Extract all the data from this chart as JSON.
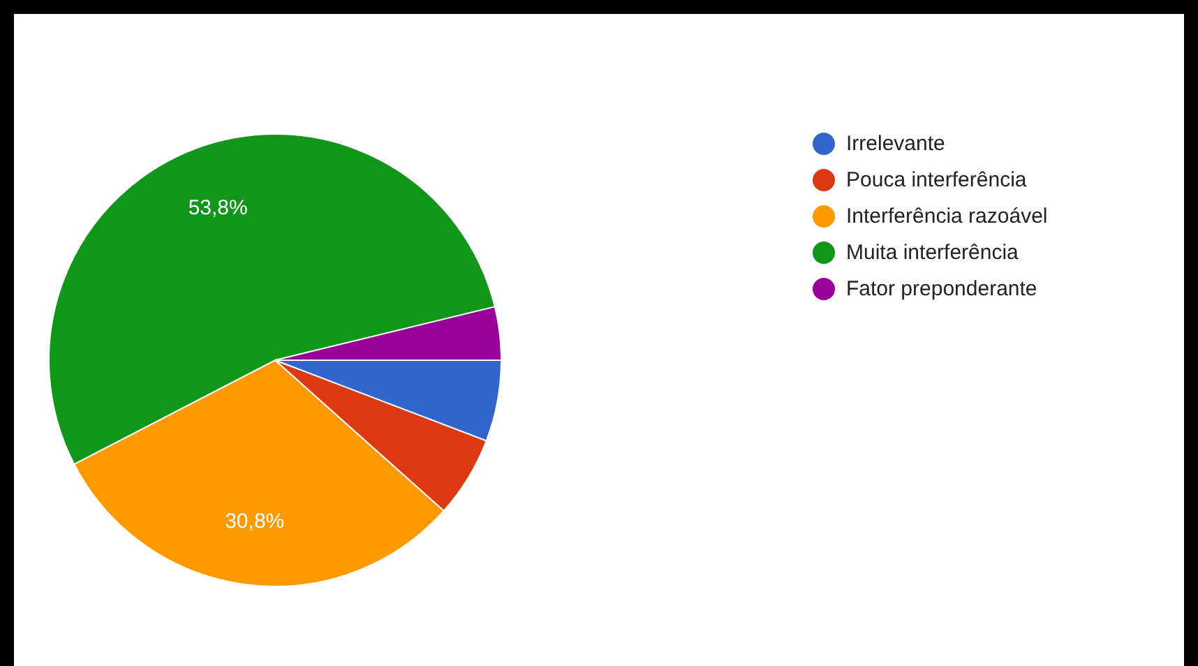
{
  "chart_data": {
    "type": "pie",
    "categories": [
      "Irrelevante",
      "Pouca interferência",
      "Interferência razoável",
      "Muita interferência",
      "Fator preponderante"
    ],
    "values": [
      5.8,
      5.8,
      30.8,
      53.8,
      3.8
    ],
    "colors": [
      "#3366cc",
      "#dc3912",
      "#ff9900",
      "#109618",
      "#990099"
    ],
    "value_labels": [
      null,
      null,
      "30,8%",
      "53,8%",
      null
    ],
    "legend": "top right"
  }
}
